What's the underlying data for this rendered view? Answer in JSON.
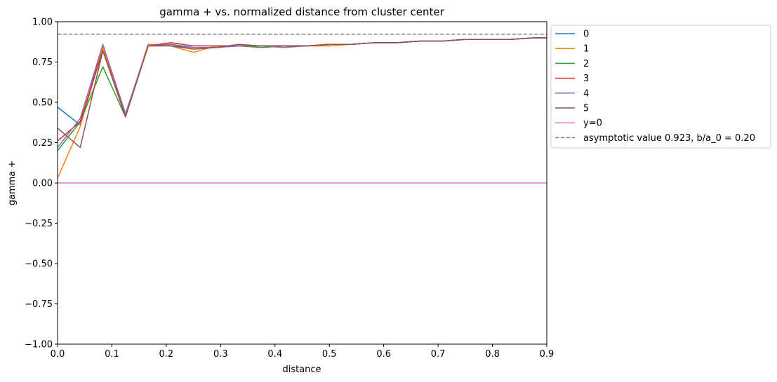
{
  "chart_data": {
    "type": "line",
    "title": "gamma + vs. normalized distance from cluster center",
    "xlabel": "distance",
    "ylabel": "gamma +",
    "xlim": [
      0,
      0.9
    ],
    "ylim": [
      -1.0,
      1.0
    ],
    "xticks": [
      "0.0",
      "0.1",
      "0.2",
      "0.3",
      "0.4",
      "0.5",
      "0.6",
      "0.7",
      "0.8",
      "0.9"
    ],
    "xtick_values": [
      0,
      0.1,
      0.2,
      0.3,
      0.4,
      0.5,
      0.6,
      0.7,
      0.8,
      0.9
    ],
    "yticks": [
      "−1.00",
      "−0.75",
      "−0.50",
      "−0.25",
      "0.00",
      "0.25",
      "0.50",
      "0.75",
      "1.00"
    ],
    "ytick_values": [
      -1.0,
      -0.75,
      -0.5,
      -0.25,
      0,
      0.25,
      0.5,
      0.75,
      1.0
    ],
    "grid": false,
    "legend_placement": "outside-top-right",
    "x": [
      0,
      0.0417,
      0.0833,
      0.125,
      0.1667,
      0.2083,
      0.25,
      0.2917,
      0.3333,
      0.375,
      0.4167,
      0.4583,
      0.5,
      0.5417,
      0.5833,
      0.625,
      0.6667,
      0.7083,
      0.75,
      0.7917,
      0.8333,
      0.875,
      0.9167
    ],
    "series": [
      {
        "name": "0",
        "color": "#1f77b4",
        "values": [
          0.47,
          0.36,
          0.85,
          0.42,
          0.86,
          0.85,
          0.84,
          0.84,
          0.85,
          0.85,
          0.85,
          0.85,
          0.86,
          0.86,
          0.87,
          0.87,
          0.88,
          0.88,
          0.89,
          0.89,
          0.89,
          0.9,
          0.9
        ]
      },
      {
        "name": "1",
        "color": "#ff7f0e",
        "values": [
          0.03,
          0.35,
          0.84,
          0.42,
          0.86,
          0.85,
          0.81,
          0.85,
          0.85,
          0.85,
          0.85,
          0.85,
          0.85,
          0.86,
          0.87,
          0.87,
          0.88,
          0.88,
          0.89,
          0.89,
          0.89,
          0.9,
          0.9
        ]
      },
      {
        "name": "2",
        "color": "#2ca02c",
        "values": [
          0.2,
          0.38,
          0.72,
          0.41,
          0.85,
          0.86,
          0.84,
          0.84,
          0.85,
          0.84,
          0.85,
          0.85,
          0.86,
          0.86,
          0.87,
          0.87,
          0.88,
          0.88,
          0.89,
          0.89,
          0.89,
          0.9,
          0.9
        ]
      },
      {
        "name": "3",
        "color": "#d62728",
        "values": [
          0.26,
          0.38,
          0.82,
          0.42,
          0.85,
          0.87,
          0.85,
          0.85,
          0.85,
          0.85,
          0.85,
          0.85,
          0.86,
          0.86,
          0.87,
          0.87,
          0.88,
          0.88,
          0.89,
          0.89,
          0.89,
          0.9,
          0.9
        ]
      },
      {
        "name": "4",
        "color": "#9467bd",
        "values": [
          0.22,
          0.4,
          0.86,
          0.43,
          0.85,
          0.86,
          0.84,
          0.84,
          0.85,
          0.85,
          0.84,
          0.85,
          0.86,
          0.86,
          0.87,
          0.87,
          0.88,
          0.88,
          0.89,
          0.89,
          0.89,
          0.9,
          0.9
        ]
      },
      {
        "name": "5",
        "color": "#8c564b",
        "values": [
          0.34,
          0.22,
          0.82,
          0.41,
          0.85,
          0.85,
          0.83,
          0.84,
          0.86,
          0.85,
          0.85,
          0.85,
          0.86,
          0.86,
          0.87,
          0.87,
          0.88,
          0.88,
          0.89,
          0.89,
          0.89,
          0.9,
          0.9
        ]
      }
    ],
    "reference_lines": [
      {
        "name": "y=0",
        "y": 0,
        "color": "#e377c2",
        "style": "solid"
      },
      {
        "name": "asymptotic value 0.923, b/a_0 = 0.20",
        "y": 0.923,
        "color": "#7f7f7f",
        "style": "dashed"
      }
    ]
  }
}
